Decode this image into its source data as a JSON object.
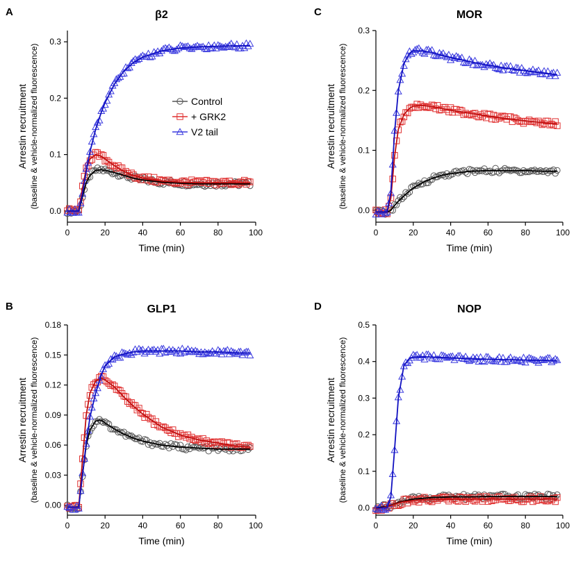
{
  "figure": {
    "legend": {
      "items": [
        {
          "label": "Control",
          "color": "#555555",
          "marker": "circle"
        },
        {
          "label": "+ GRK2",
          "color": "#e03030",
          "marker": "square"
        },
        {
          "label": "V2 tail",
          "color": "#3a3adf",
          "marker": "triangle"
        }
      ]
    }
  },
  "chart_data": [
    {
      "id": "A",
      "letter": "A",
      "type": "line",
      "title": "β2",
      "xlabel": "Time (min)",
      "ylabel": "Arrestin recruitment",
      "ylabel2": "(baseline & vehicle-normalized fluorescence)",
      "xlim": [
        0,
        100
      ],
      "ylim": [
        -0.02,
        0.32
      ],
      "xticks": [
        0,
        20,
        40,
        60,
        80,
        100
      ],
      "yticks": [
        0.0,
        0.1,
        0.2,
        0.3
      ],
      "ytick_labels": [
        "0.0",
        "0.1",
        "0.2",
        "0.3"
      ],
      "series": [
        {
          "name": "Control",
          "color": "#555555",
          "marker": "circle",
          "x": [
            0,
            3,
            6,
            8,
            10,
            12,
            15,
            18,
            20,
            25,
            30,
            35,
            40,
            50,
            60,
            70,
            80,
            90,
            97
          ],
          "y": [
            0.0,
            0.0,
            0.0,
            0.025,
            0.05,
            0.063,
            0.072,
            0.073,
            0.072,
            0.068,
            0.063,
            0.058,
            0.055,
            0.051,
            0.049,
            0.048,
            0.048,
            0.048,
            0.048
          ]
        },
        {
          "name": "+ GRK2",
          "color": "#e03030",
          "marker": "square",
          "x": [
            0,
            3,
            6,
            8,
            10,
            12,
            15,
            18,
            20,
            25,
            30,
            35,
            40,
            50,
            60,
            70,
            80,
            90,
            97
          ],
          "y": [
            0.0,
            0.0,
            0.0,
            0.04,
            0.075,
            0.092,
            0.1,
            0.097,
            0.092,
            0.08,
            0.07,
            0.063,
            0.058,
            0.053,
            0.051,
            0.05,
            0.05,
            0.05,
            0.05
          ]
        },
        {
          "name": "V2 tail",
          "color": "#3a3adf",
          "marker": "triangle",
          "x": [
            0,
            3,
            6,
            8,
            10,
            12,
            15,
            18,
            20,
            25,
            30,
            35,
            40,
            50,
            60,
            70,
            80,
            90,
            97
          ],
          "y": [
            0.0,
            0.0,
            0.0,
            0.03,
            0.07,
            0.105,
            0.145,
            0.175,
            0.192,
            0.225,
            0.248,
            0.263,
            0.273,
            0.284,
            0.289,
            0.291,
            0.292,
            0.293,
            0.293
          ]
        }
      ]
    },
    {
      "id": "B",
      "letter": "B",
      "type": "line",
      "title": "GLP1",
      "xlabel": "Time (min)",
      "ylabel": "Arrestin recruitment",
      "ylabel2": "(baseline & vehicle-normalized fluorescence)",
      "xlim": [
        0,
        100
      ],
      "ylim": [
        -0.01,
        0.18
      ],
      "xticks": [
        0,
        20,
        40,
        60,
        80,
        100
      ],
      "yticks": [
        0.0,
        0.03,
        0.06,
        0.09,
        0.12,
        0.15,
        0.18
      ],
      "ytick_labels": [
        "0.00",
        "0.03",
        "0.06",
        "0.09",
        "0.12",
        "0.15",
        "0.18"
      ],
      "series": [
        {
          "name": "Control",
          "color": "#555555",
          "marker": "circle",
          "x": [
            0,
            3,
            6,
            8,
            10,
            12,
            15,
            18,
            20,
            25,
            30,
            35,
            40,
            50,
            60,
            70,
            80,
            90,
            97
          ],
          "y": [
            -0.002,
            -0.002,
            -0.002,
            0.03,
            0.06,
            0.075,
            0.084,
            0.085,
            0.082,
            0.076,
            0.071,
            0.067,
            0.064,
            0.06,
            0.058,
            0.057,
            0.056,
            0.056,
            0.056
          ]
        },
        {
          "name": "+ GRK2",
          "color": "#e03030",
          "marker": "square",
          "x": [
            0,
            3,
            6,
            8,
            10,
            12,
            15,
            18,
            20,
            25,
            30,
            35,
            40,
            50,
            60,
            70,
            80,
            90,
            97
          ],
          "y": [
            -0.002,
            -0.002,
            -0.002,
            0.045,
            0.09,
            0.112,
            0.124,
            0.127,
            0.125,
            0.118,
            0.108,
            0.099,
            0.091,
            0.078,
            0.07,
            0.065,
            0.062,
            0.059,
            0.058
          ]
        },
        {
          "name": "V2 tail",
          "color": "#3a3adf",
          "marker": "triangle",
          "x": [
            0,
            3,
            6,
            8,
            10,
            12,
            15,
            18,
            20,
            25,
            30,
            35,
            40,
            50,
            60,
            70,
            80,
            90,
            97
          ],
          "y": [
            -0.002,
            -0.002,
            -0.002,
            0.03,
            0.062,
            0.088,
            0.112,
            0.13,
            0.139,
            0.148,
            0.151,
            0.153,
            0.154,
            0.154,
            0.154,
            0.153,
            0.153,
            0.152,
            0.152
          ]
        }
      ]
    },
    {
      "id": "C",
      "letter": "C",
      "type": "line",
      "title": "MOR",
      "xlabel": "Time (min)",
      "ylabel": "Arrestin recruitment",
      "ylabel2": "(baseline & vehicle-normalized fluorescence)",
      "xlim": [
        0,
        100
      ],
      "ylim": [
        -0.02,
        0.3
      ],
      "xticks": [
        0,
        20,
        40,
        60,
        80,
        100
      ],
      "yticks": [
        0.0,
        0.1,
        0.2,
        0.3
      ],
      "ytick_labels": [
        "0.0",
        "0.1",
        "0.2",
        "0.3"
      ],
      "series": [
        {
          "name": "Control",
          "color": "#555555",
          "marker": "circle",
          "x": [
            0,
            3,
            6,
            8,
            10,
            12,
            15,
            18,
            20,
            25,
            30,
            35,
            40,
            50,
            60,
            70,
            80,
            90,
            97
          ],
          "y": [
            -0.003,
            -0.003,
            -0.003,
            0.0,
            0.008,
            0.015,
            0.024,
            0.032,
            0.037,
            0.046,
            0.053,
            0.058,
            0.061,
            0.065,
            0.066,
            0.066,
            0.066,
            0.065,
            0.065
          ]
        },
        {
          "name": "+ GRK2",
          "color": "#e03030",
          "marker": "square",
          "x": [
            0,
            3,
            6,
            8,
            10,
            12,
            15,
            18,
            20,
            25,
            30,
            35,
            40,
            50,
            60,
            70,
            80,
            90,
            97
          ],
          "y": [
            -0.003,
            -0.003,
            -0.003,
            0.02,
            0.09,
            0.135,
            0.16,
            0.17,
            0.174,
            0.175,
            0.173,
            0.17,
            0.167,
            0.162,
            0.157,
            0.153,
            0.149,
            0.146,
            0.144
          ]
        },
        {
          "name": "V2 tail",
          "color": "#3a3adf",
          "marker": "triangle",
          "x": [
            0,
            3,
            6,
            8,
            10,
            12,
            15,
            18,
            20,
            25,
            30,
            35,
            40,
            50,
            60,
            70,
            80,
            90,
            97
          ],
          "y": [
            -0.003,
            -0.003,
            -0.003,
            0.03,
            0.13,
            0.2,
            0.245,
            0.262,
            0.266,
            0.266,
            0.263,
            0.259,
            0.255,
            0.248,
            0.242,
            0.237,
            0.233,
            0.229,
            0.226
          ]
        }
      ]
    },
    {
      "id": "D",
      "letter": "D",
      "type": "line",
      "title": "NOP",
      "xlabel": "Time (min)",
      "ylabel": "Arrestin recruitment",
      "ylabel2": "(baseline & vehicle-normalized fluorescence)",
      "xlim": [
        0,
        100
      ],
      "ylim": [
        -0.02,
        0.5
      ],
      "xticks": [
        0,
        20,
        40,
        60,
        80,
        100
      ],
      "yticks": [
        0.0,
        0.1,
        0.2,
        0.3,
        0.4,
        0.5
      ],
      "ytick_labels": [
        "0.0",
        "0.1",
        "0.2",
        "0.3",
        "0.4",
        "0.5"
      ],
      "series": [
        {
          "name": "Control",
          "color": "#555555",
          "marker": "circle",
          "x": [
            0,
            3,
            6,
            8,
            10,
            12,
            15,
            18,
            20,
            25,
            30,
            35,
            40,
            50,
            60,
            70,
            80,
            90,
            97
          ],
          "y": [
            0.0,
            0.002,
            0.004,
            0.007,
            0.011,
            0.015,
            0.019,
            0.022,
            0.024,
            0.026,
            0.028,
            0.029,
            0.03,
            0.03,
            0.031,
            0.031,
            0.031,
            0.031,
            0.031
          ]
        },
        {
          "name": "+ GRK2",
          "color": "#e03030",
          "marker": "square",
          "x": [
            0,
            3,
            6,
            8,
            10,
            12,
            15,
            18,
            20,
            25,
            30,
            35,
            40,
            50,
            60,
            70,
            80,
            90,
            97
          ],
          "y": [
            -0.003,
            0.0,
            0.003,
            0.006,
            0.01,
            0.013,
            0.017,
            0.019,
            0.02,
            0.022,
            0.023,
            0.024,
            0.024,
            0.024,
            0.024,
            0.024,
            0.024,
            0.024,
            0.024
          ]
        },
        {
          "name": "V2 tail",
          "color": "#3a3adf",
          "marker": "triangle",
          "x": [
            0,
            3,
            6,
            8,
            10,
            12,
            15,
            18,
            20,
            25,
            30,
            35,
            40,
            50,
            60,
            70,
            80,
            90,
            97
          ],
          "y": [
            0.0,
            0.0,
            0.0,
            0.03,
            0.16,
            0.3,
            0.39,
            0.408,
            0.412,
            0.413,
            0.412,
            0.411,
            0.41,
            0.408,
            0.406,
            0.405,
            0.404,
            0.403,
            0.402
          ]
        }
      ]
    }
  ]
}
